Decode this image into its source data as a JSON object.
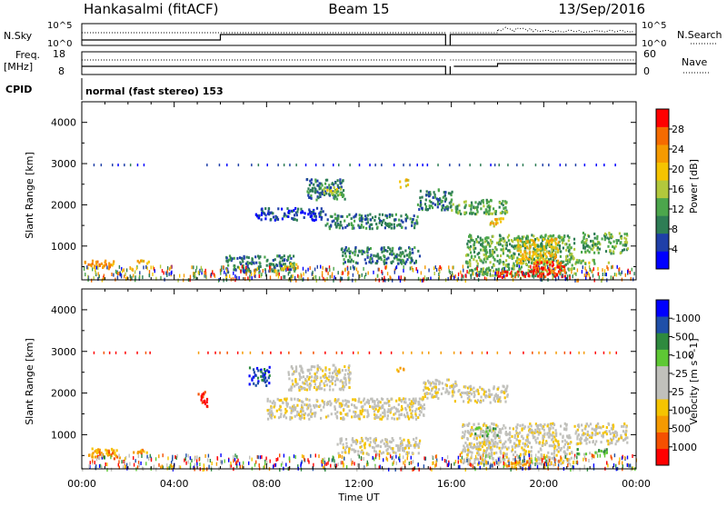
{
  "header": {
    "station": "Hankasalmi (fitACF)",
    "beam": "Beam 15",
    "date": "13/Sep/2016"
  },
  "strip1": {
    "left_label": "N.Sky",
    "left_ticks": [
      "10^5",
      "10^0"
    ],
    "right_ticks": [
      "10^5",
      "10^0"
    ],
    "right_label": "N.Search"
  },
  "strip2": {
    "left_label_1": "Freq.",
    "left_label_2": "[MHz]",
    "left_ticks": [
      "18",
      "8"
    ],
    "right_ticks": [
      "60",
      "0"
    ],
    "right_label": "Nave"
  },
  "cpid": {
    "label": "CPID",
    "program": "normal (fast stereo) 153"
  },
  "chart_data": [
    {
      "type": "heatmap",
      "name": "Power",
      "ylabel": "Slant Range [km]",
      "xlabel": "Time UT",
      "x_ticks": [
        "00:00",
        "04:00",
        "08:00",
        "12:00",
        "16:00",
        "20:00",
        "00:00"
      ],
      "x_range_hours": [
        0,
        24
      ],
      "ylim": [
        180,
        4500
      ],
      "y_ticks": [
        1000,
        2000,
        3000,
        4000
      ],
      "colorbar": {
        "label": "Power [dB]",
        "ticks": [
          "4",
          "8",
          "12",
          "16",
          "20",
          "24",
          "28"
        ],
        "colors": [
          "#0000ff",
          "#1f3fa8",
          "#2e7d55",
          "#4ca64c",
          "#b2c83c",
          "#f5c400",
          "#f59a00",
          "#f56b00",
          "#ff0000"
        ]
      },
      "regions": [
        {
          "t0": 0.1,
          "t1": 1.4,
          "r0": 480,
          "r1": 700,
          "level": 6
        },
        {
          "t0": 2.3,
          "t1": 3.0,
          "r0": 580,
          "r1": 680,
          "level": 5
        },
        {
          "t0": 6.2,
          "t1": 9.2,
          "r0": 380,
          "r1": 800,
          "level": 2
        },
        {
          "t0": 8.7,
          "t1": 9.3,
          "r0": 480,
          "r1": 620,
          "level": 4
        },
        {
          "t0": 9.7,
          "t1": 11.4,
          "r0": 2150,
          "r1": 2650,
          "level": 2
        },
        {
          "t0": 10.4,
          "t1": 11.2,
          "r0": 2250,
          "r1": 2450,
          "level": 4
        },
        {
          "t0": 7.5,
          "t1": 10.5,
          "r0": 1650,
          "r1": 1950,
          "level": 1
        },
        {
          "t0": 10.5,
          "t1": 14.5,
          "r0": 1450,
          "r1": 1800,
          "level": 2
        },
        {
          "t0": 11.2,
          "t1": 14.6,
          "r0": 600,
          "r1": 1000,
          "level": 2
        },
        {
          "t0": 13.7,
          "t1": 14.1,
          "r0": 2450,
          "r1": 2650,
          "level": 5
        },
        {
          "t0": 14.5,
          "t1": 16.0,
          "r0": 1900,
          "r1": 2400,
          "level": 2
        },
        {
          "t0": 15.9,
          "t1": 18.4,
          "r0": 1800,
          "r1": 2150,
          "level": 3
        },
        {
          "t0": 17.6,
          "t1": 18.3,
          "r0": 1500,
          "r1": 1700,
          "level": 5
        },
        {
          "t0": 16.6,
          "t1": 21.3,
          "r0": 300,
          "r1": 1300,
          "level": 3
        },
        {
          "t0": 18.8,
          "t1": 20.6,
          "r0": 600,
          "r1": 1200,
          "level": 5
        },
        {
          "t0": 17.9,
          "t1": 19.6,
          "r0": 260,
          "r1": 420,
          "level": 8
        },
        {
          "t0": 19.5,
          "t1": 20.9,
          "r0": 260,
          "r1": 650,
          "level": 8
        },
        {
          "t0": 21.6,
          "t1": 23.6,
          "r0": 850,
          "r1": 1350,
          "level": 3
        },
        {
          "t0": 21.3,
          "t1": 22.8,
          "r0": 600,
          "r1": 700,
          "level": 4
        }
      ]
    },
    {
      "type": "heatmap",
      "name": "Velocity",
      "ylabel": "Slant Range [km]",
      "xlabel": "Time UT",
      "x_ticks": [
        "00:00",
        "04:00",
        "08:00",
        "12:00",
        "16:00",
        "20:00",
        "00:00"
      ],
      "x_range_hours": [
        0,
        24
      ],
      "ylim": [
        180,
        4500
      ],
      "y_ticks": [
        1000,
        2000,
        3000,
        4000
      ],
      "colorbar": {
        "label": "Velocity [m s^-1]",
        "ticks": [
          "1000",
          "500",
          "100",
          "25",
          "-25",
          "-100",
          "-500",
          "-1000"
        ],
        "colors": [
          "#ff0000",
          "#f55000",
          "#f59a00",
          "#f5c400",
          "#c0c0bb",
          "#c0c0bb",
          "#5ec834",
          "#2e8a3e",
          "#1f4fa8",
          "#0000ff"
        ]
      },
      "regions": [
        {
          "t0": 0.1,
          "t1": 1.6,
          "r0": 450,
          "r1": 700,
          "level": 2
        },
        {
          "t0": 2.2,
          "t1": 2.9,
          "r0": 560,
          "r1": 680,
          "level": 2
        },
        {
          "t0": 5.0,
          "t1": 5.4,
          "r0": 1700,
          "r1": 2100,
          "level": 0
        },
        {
          "t0": 7.2,
          "t1": 8.1,
          "r0": 2200,
          "r1": 2650,
          "level": 8
        },
        {
          "t0": 8.9,
          "t1": 11.6,
          "r0": 2100,
          "r1": 2700,
          "level": 4
        },
        {
          "t0": 8.0,
          "t1": 14.8,
          "r0": 1400,
          "r1": 1900,
          "level": 4
        },
        {
          "t0": 11.0,
          "t1": 14.6,
          "r0": 550,
          "r1": 950,
          "level": 4
        },
        {
          "t0": 13.6,
          "t1": 14.0,
          "r0": 2550,
          "r1": 2650,
          "level": 2
        },
        {
          "t0": 14.7,
          "t1": 16.2,
          "r0": 1900,
          "r1": 2350,
          "level": 4
        },
        {
          "t0": 16.0,
          "t1": 18.4,
          "r0": 1800,
          "r1": 2200,
          "level": 4
        },
        {
          "t0": 16.4,
          "t1": 21.2,
          "r0": 300,
          "r1": 1300,
          "level": 4
        },
        {
          "t0": 17.0,
          "t1": 18.1,
          "r0": 1000,
          "r1": 1200,
          "level": 6
        },
        {
          "t0": 21.3,
          "t1": 23.6,
          "r0": 800,
          "r1": 1300,
          "level": 4
        },
        {
          "t0": 21.4,
          "t1": 22.8,
          "r0": 550,
          "r1": 680,
          "level": 6
        },
        {
          "t0": 18.2,
          "t1": 19.4,
          "r0": 250,
          "r1": 420,
          "level": 2
        }
      ]
    }
  ]
}
